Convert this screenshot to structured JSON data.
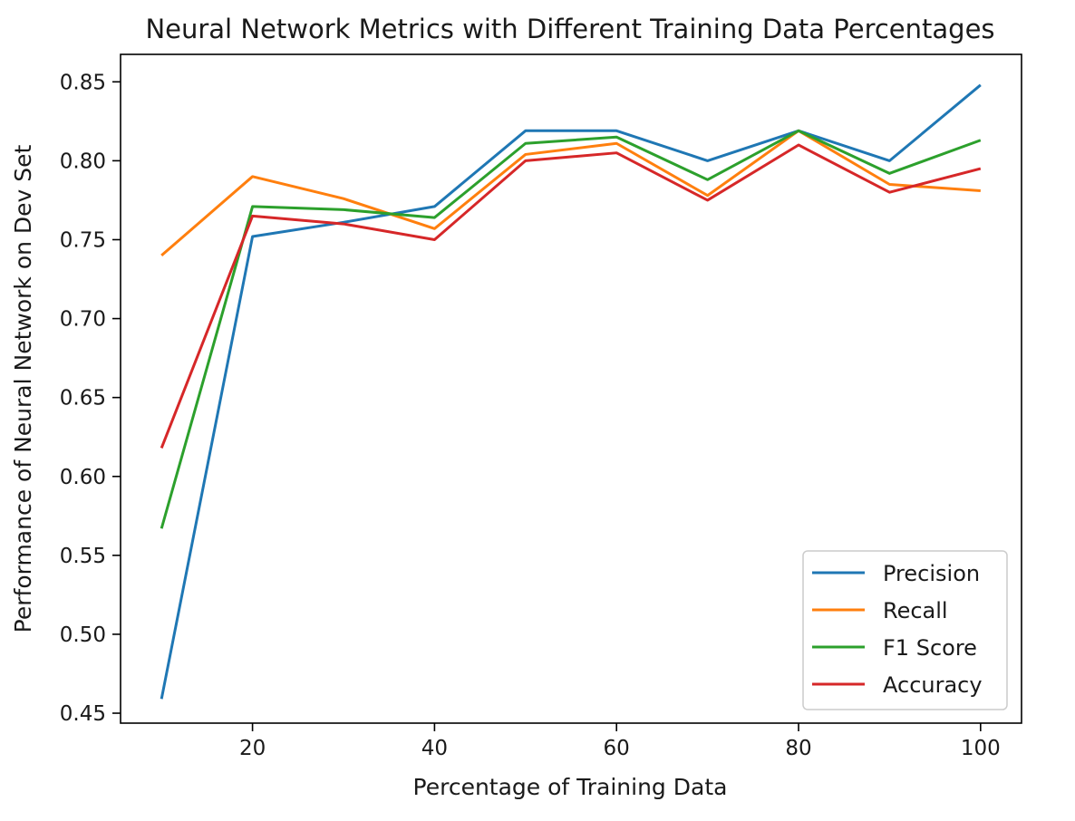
{
  "chart_data": {
    "type": "line",
    "title": "Neural Network Metrics with Different Training Data Percentages",
    "xlabel": "Percentage of Training Data",
    "ylabel": "Performance of Neural Network on Dev Set",
    "x": [
      10,
      20,
      30,
      40,
      50,
      60,
      70,
      80,
      90,
      100
    ],
    "xlim": [
      5.5,
      104.5
    ],
    "ylim": [
      0.4437,
      0.8674
    ],
    "xticks": [
      20,
      40,
      60,
      80,
      100
    ],
    "yticks": [
      0.45,
      0.5,
      0.55,
      0.6,
      0.65,
      0.7,
      0.75,
      0.8,
      0.85
    ],
    "ytick_labels": [
      "0.45",
      "0.50",
      "0.55",
      "0.60",
      "0.65",
      "0.70",
      "0.75",
      "0.80",
      "0.85"
    ],
    "grid": false,
    "legend_position": "lower-right",
    "series": [
      {
        "name": "Precision",
        "color": "#1f77b4",
        "values": [
          0.459,
          0.752,
          0.761,
          0.771,
          0.819,
          0.819,
          0.8,
          0.819,
          0.8,
          0.848
        ]
      },
      {
        "name": "Recall",
        "color": "#ff7f0e",
        "values": [
          0.74,
          0.79,
          0.776,
          0.757,
          0.804,
          0.811,
          0.778,
          0.819,
          0.785,
          0.781
        ]
      },
      {
        "name": "F1 Score",
        "color": "#2ca02c",
        "values": [
          0.567,
          0.771,
          0.769,
          0.764,
          0.811,
          0.815,
          0.788,
          0.819,
          0.792,
          0.813
        ]
      },
      {
        "name": "Accuracy",
        "color": "#d62728",
        "values": [
          0.618,
          0.765,
          0.76,
          0.75,
          0.8,
          0.805,
          0.775,
          0.81,
          0.78,
          0.795
        ]
      }
    ]
  }
}
